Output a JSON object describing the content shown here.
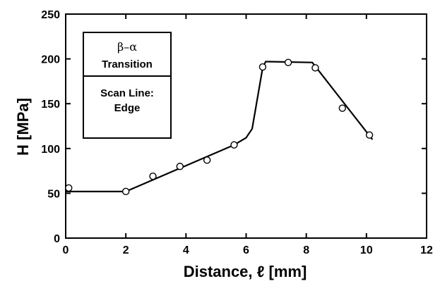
{
  "chart_data": {
    "type": "scatter",
    "xlabel": "Distance, ℓ [mm]",
    "ylabel": "H [MPa]",
    "xlim": [
      0,
      12
    ],
    "ylim": [
      0,
      250
    ],
    "xticks": [
      "0",
      "2",
      "4",
      "6",
      "8",
      "10",
      "12"
    ],
    "yticks": [
      "0",
      "50",
      "100",
      "150",
      "200",
      "250"
    ],
    "grid": false,
    "legend_box": {
      "line1": "β–α",
      "line2": "Transition",
      "line3": "Scan Line:",
      "line4": "Edge",
      "placement": "top-left"
    },
    "series": [
      {
        "kind": "markers",
        "marker": "open-circle",
        "x": [
          0.1,
          2.0,
          2.9,
          3.8,
          4.7,
          5.6,
          6.55,
          7.4,
          8.3,
          9.2,
          10.1
        ],
        "y": [
          56,
          52,
          69,
          80,
          87,
          104,
          191,
          196,
          190,
          145,
          115
        ]
      },
      {
        "kind": "line",
        "x": [
          0.0,
          2.0,
          5.6,
          6.0,
          6.2,
          6.55,
          6.65,
          8.2,
          10.2
        ],
        "y": [
          52,
          52,
          104,
          112,
          122,
          190,
          197,
          196,
          110
        ]
      }
    ]
  }
}
